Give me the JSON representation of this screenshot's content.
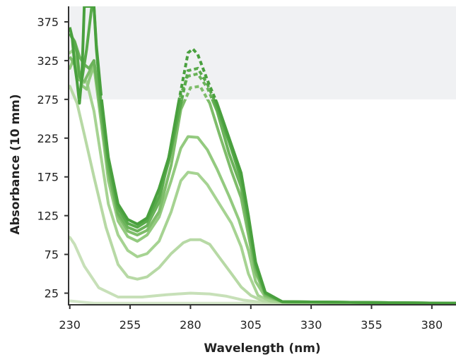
{
  "chart_data": {
    "type": "line",
    "xlabel": "Wavelength (nm)",
    "ylabel": "Absorbance (10 mm)",
    "xlim": [
      229.5,
      390
    ],
    "ylim": [
      10,
      395
    ],
    "x_ticks": [
      230,
      255,
      280,
      305,
      330,
      355,
      380
    ],
    "y_ticks": [
      25,
      75,
      125,
      175,
      225,
      275,
      325,
      375
    ],
    "saturation_region": {
      "ymin": 275,
      "ymax": 395,
      "color": "#f0f1f3"
    },
    "grid": false,
    "legend": "none",
    "series": [
      {
        "color": "#d3e6c8",
        "dashed_above": null,
        "points": [
          [
            230,
            15
          ],
          [
            240,
            12
          ],
          [
            250,
            12
          ],
          [
            260,
            12
          ],
          [
            270,
            12
          ],
          [
            280,
            12
          ],
          [
            290,
            12
          ],
          [
            300,
            12
          ],
          [
            310,
            12
          ],
          [
            320,
            12
          ],
          [
            390,
            12
          ]
        ]
      },
      {
        "color": "#c7e0b8",
        "dashed_above": null,
        "points": [
          [
            230,
            97
          ],
          [
            232,
            88
          ],
          [
            236,
            60
          ],
          [
            242,
            32
          ],
          [
            250,
            20
          ],
          [
            260,
            20
          ],
          [
            270,
            23
          ],
          [
            280,
            25
          ],
          [
            288,
            24
          ],
          [
            295,
            21
          ],
          [
            302,
            16
          ],
          [
            310,
            13
          ],
          [
            320,
            12
          ],
          [
            390,
            12
          ]
        ]
      },
      {
        "color": "#b7d9a5",
        "dashed_above": null,
        "points": [
          [
            230,
            292
          ],
          [
            233,
            270
          ],
          [
            236,
            230
          ],
          [
            240,
            175
          ],
          [
            245,
            110
          ],
          [
            250,
            62
          ],
          [
            254,
            46
          ],
          [
            258,
            43
          ],
          [
            262,
            46
          ],
          [
            267,
            58
          ],
          [
            272,
            76
          ],
          [
            277,
            90
          ],
          [
            280,
            94
          ],
          [
            284,
            94
          ],
          [
            288,
            88
          ],
          [
            292,
            71
          ],
          [
            297,
            50
          ],
          [
            301,
            33
          ],
          [
            305,
            22
          ],
          [
            310,
            15
          ],
          [
            318,
            13
          ],
          [
            390,
            12
          ]
        ]
      },
      {
        "color": "#a6d392",
        "dashed_above": null,
        "points": [
          [
            230,
            335
          ],
          [
            232,
            340
          ],
          [
            233,
            310
          ],
          [
            235,
            296
          ],
          [
            237,
            298
          ],
          [
            240,
            260
          ],
          [
            243,
            200
          ],
          [
            246,
            140
          ],
          [
            250,
            100
          ],
          [
            254,
            80
          ],
          [
            258,
            72
          ],
          [
            262,
            76
          ],
          [
            267,
            92
          ],
          [
            272,
            130
          ],
          [
            276,
            170
          ],
          [
            279,
            181
          ],
          [
            283,
            179
          ],
          [
            287,
            165
          ],
          [
            292,
            140
          ],
          [
            297,
            115
          ],
          [
            301,
            85
          ],
          [
            304,
            50
          ],
          [
            308,
            22
          ],
          [
            313,
            15
          ],
          [
            320,
            13
          ],
          [
            390,
            12
          ]
        ]
      },
      {
        "color": "#93ca7f",
        "dashed_above": null,
        "points": [
          [
            230,
            315
          ],
          [
            232,
            330
          ],
          [
            234,
            310
          ],
          [
            235,
            293
          ],
          [
            237,
            288
          ],
          [
            238,
            300
          ],
          [
            240,
            318
          ],
          [
            243,
            245
          ],
          [
            246,
            170
          ],
          [
            250,
            118
          ],
          [
            254,
            98
          ],
          [
            258,
            92
          ],
          [
            262,
            100
          ],
          [
            267,
            123
          ],
          [
            272,
            170
          ],
          [
            276,
            212
          ],
          [
            279,
            227
          ],
          [
            283,
            226
          ],
          [
            287,
            210
          ],
          [
            291,
            185
          ],
          [
            296,
            150
          ],
          [
            300,
            120
          ],
          [
            304,
            80
          ],
          [
            307,
            40
          ],
          [
            311,
            20
          ],
          [
            318,
            14
          ],
          [
            390,
            12
          ]
        ]
      },
      {
        "color": "#7ebd6a",
        "dashed_above": 275,
        "points": [
          [
            230,
            330
          ],
          [
            232,
            320
          ],
          [
            234,
            300
          ],
          [
            236,
            298
          ],
          [
            238,
            310
          ],
          [
            240,
            325
          ],
          [
            243,
            255
          ],
          [
            246,
            180
          ],
          [
            250,
            125
          ],
          [
            254,
            105
          ],
          [
            258,
            100
          ],
          [
            262,
            106
          ],
          [
            267,
            130
          ],
          [
            272,
            190
          ],
          [
            276,
            262
          ],
          [
            280,
            290
          ],
          [
            284,
            292
          ],
          [
            288,
            270
          ],
          [
            292,
            230
          ],
          [
            297,
            182
          ],
          [
            301,
            148
          ],
          [
            304,
            100
          ],
          [
            307,
            52
          ],
          [
            311,
            22
          ],
          [
            318,
            14
          ],
          [
            390,
            12
          ]
        ]
      },
      {
        "color": "#6bb35a",
        "dashed_above": 275,
        "points": [
          [
            230,
            360
          ],
          [
            232,
            350
          ],
          [
            234,
            330
          ],
          [
            236,
            320
          ],
          [
            238,
            315
          ],
          [
            240,
            325
          ],
          [
            243,
            255
          ],
          [
            246,
            185
          ],
          [
            250,
            128
          ],
          [
            254,
            110
          ],
          [
            258,
            105
          ],
          [
            262,
            112
          ],
          [
            267,
            142
          ],
          [
            272,
            215
          ],
          [
            276,
            282
          ],
          [
            279,
            305
          ],
          [
            283,
            308
          ],
          [
            287,
            290
          ],
          [
            291,
            260
          ],
          [
            296,
            205
          ],
          [
            301,
            162
          ],
          [
            304,
            110
          ],
          [
            307,
            58
          ],
          [
            311,
            24
          ],
          [
            318,
            14
          ],
          [
            390,
            12
          ]
        ]
      },
      {
        "color": "#58aa4a",
        "dashed_above": 275,
        "points": [
          [
            230,
            360
          ],
          [
            232,
            348
          ],
          [
            233,
            335
          ],
          [
            234,
            305
          ],
          [
            235,
            300
          ],
          [
            237,
            340
          ],
          [
            239,
            392
          ],
          [
            240,
            395
          ],
          [
            241,
            340
          ],
          [
            243,
            268
          ],
          [
            246,
            195
          ],
          [
            250,
            135
          ],
          [
            254,
            115
          ],
          [
            258,
            110
          ],
          [
            262,
            118
          ],
          [
            267,
            150
          ],
          [
            271,
            195
          ],
          [
            275,
            255
          ],
          [
            279,
            312
          ],
          [
            283,
            315
          ],
          [
            287,
            295
          ],
          [
            291,
            265
          ],
          [
            296,
            220
          ],
          [
            301,
            172
          ],
          [
            304,
            120
          ],
          [
            307,
            62
          ],
          [
            311,
            25
          ],
          [
            318,
            14
          ],
          [
            390,
            12
          ]
        ]
      },
      {
        "color": "#49a03e",
        "dashed_above": 275,
        "points": [
          [
            230,
            368
          ],
          [
            231,
            355
          ],
          [
            232,
            320
          ],
          [
            233,
            298
          ],
          [
            234,
            270
          ],
          [
            235,
            305
          ],
          [
            236,
            395
          ],
          [
            237,
            395
          ],
          [
            238,
            395
          ],
          [
            240,
            395
          ],
          [
            241,
            345
          ],
          [
            243,
            280
          ],
          [
            246,
            200
          ],
          [
            250,
            140
          ],
          [
            254,
            120
          ],
          [
            258,
            114
          ],
          [
            262,
            122
          ],
          [
            267,
            160
          ],
          [
            271,
            200
          ],
          [
            275,
            270
          ],
          [
            279,
            335
          ],
          [
            281,
            340
          ],
          [
            283,
            333
          ],
          [
            287,
            300
          ],
          [
            291,
            270
          ],
          [
            296,
            225
          ],
          [
            301,
            180
          ],
          [
            304,
            125
          ],
          [
            307,
            65
          ],
          [
            311,
            26
          ],
          [
            318,
            14
          ],
          [
            390,
            12
          ]
        ]
      }
    ]
  }
}
